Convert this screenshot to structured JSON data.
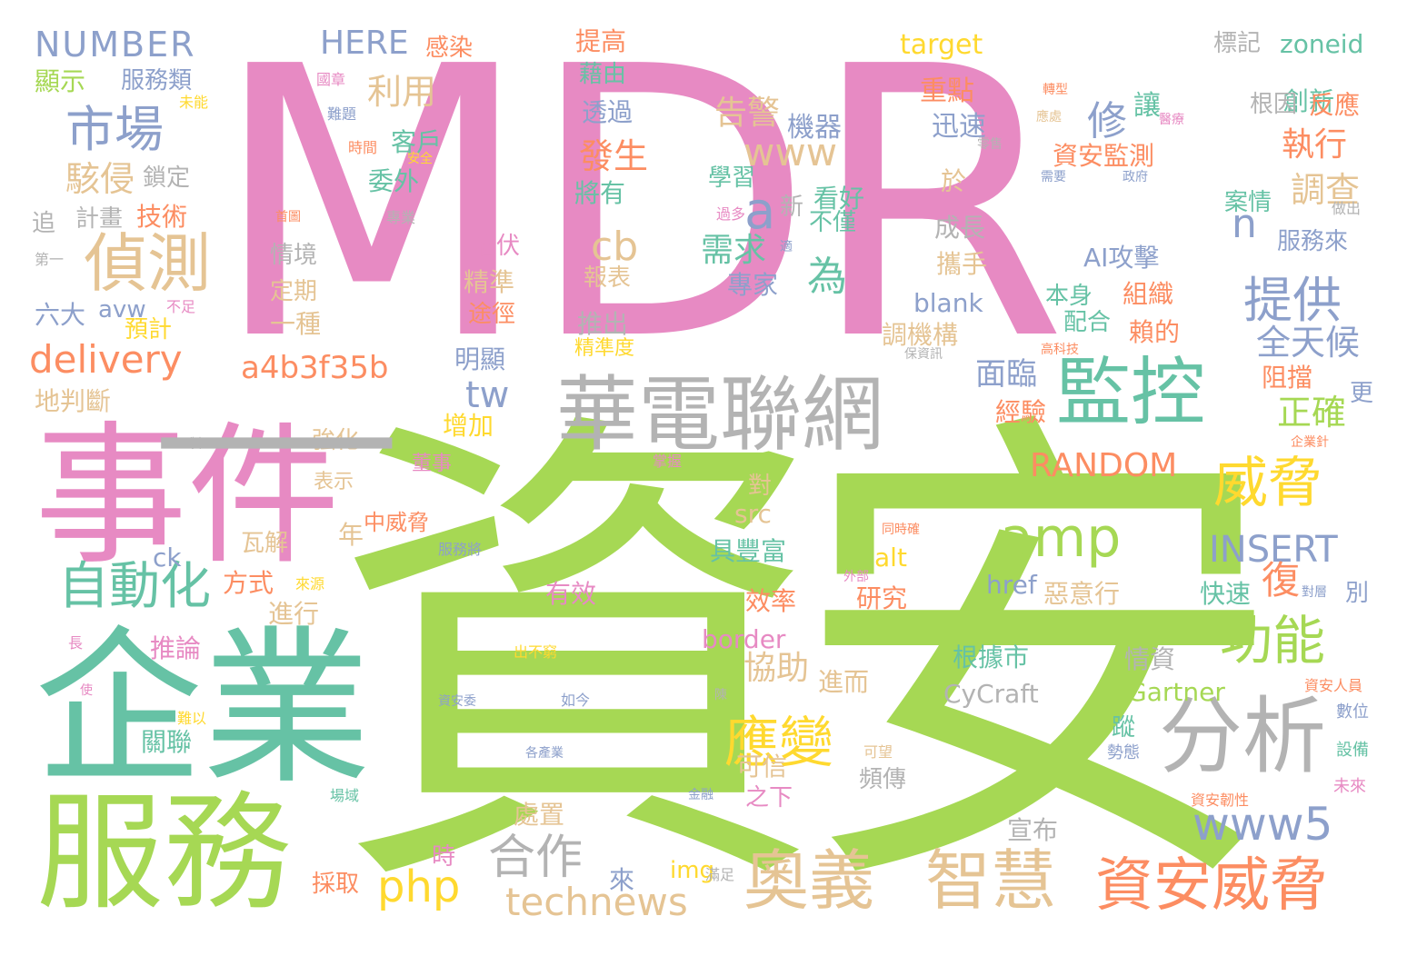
{
  "colors": {
    "pink": "#e78ac3",
    "green": "#a6d854",
    "teal": "#66c2a5",
    "gray": "#b3b3b3",
    "tan": "#e5c494",
    "blue": "#8da0cb",
    "orange": "#fc8d62",
    "yellow": "#ffd92f"
  },
  "words": [
    {
      "text": "MDR",
      "color": "pink"
    },
    {
      "text": "資安",
      "color": "green"
    },
    {
      "text": "事件",
      "color": "pink"
    },
    {
      "text": "企業",
      "color": "teal"
    },
    {
      "text": "服務",
      "color": "green"
    },
    {
      "text": "華電聯網",
      "color": "gray"
    },
    {
      "text": "監控",
      "color": "teal"
    },
    {
      "text": "分析",
      "color": "gray"
    },
    {
      "text": "奧義",
      "color": "tan"
    },
    {
      "text": "智慧",
      "color": "tan"
    },
    {
      "text": "資安威脅",
      "color": "orange"
    },
    {
      "text": "偵測",
      "color": "tan"
    },
    {
      "text": "市場",
      "color": "blue"
    },
    {
      "text": "自動化",
      "color": "teal"
    },
    {
      "text": "提供",
      "color": "blue"
    },
    {
      "text": "威脅",
      "color": "yellow"
    },
    {
      "text": "功能",
      "color": "green"
    },
    {
      "text": "應變",
      "color": "yellow"
    },
    {
      "text": "delivery",
      "color": "orange"
    },
    {
      "text": "a4b3f35b",
      "color": "orange"
    },
    {
      "text": "amp",
      "color": "green"
    },
    {
      "text": "www5",
      "color": "blue"
    },
    {
      "text": "technews",
      "color": "tan"
    },
    {
      "text": "合作",
      "color": "gray"
    },
    {
      "text": "php",
      "color": "yellow"
    },
    {
      "text": "NUMBER",
      "color": "blue"
    },
    {
      "text": "HERE",
      "color": "blue"
    },
    {
      "text": "www",
      "color": "tan"
    },
    {
      "text": "RANDOM",
      "color": "orange"
    },
    {
      "text": "INSERT",
      "color": "blue"
    },
    {
      "text": "利用",
      "color": "tan"
    },
    {
      "text": "駭侵",
      "color": "tan"
    },
    {
      "text": "告警",
      "color": "tan"
    },
    {
      "text": "發生",
      "color": "orange"
    },
    {
      "text": "執行",
      "color": "orange"
    },
    {
      "text": "調查",
      "color": "tan"
    },
    {
      "text": "全天候",
      "color": "blue"
    },
    {
      "text": "正確",
      "color": "green"
    },
    {
      "text": "面臨",
      "color": "blue"
    },
    {
      "text": "需求",
      "color": "teal"
    },
    {
      "text": "修",
      "color": "blue"
    },
    {
      "text": "復",
      "color": "orange"
    },
    {
      "text": "cb",
      "color": "tan"
    },
    {
      "text": "a",
      "color": "blue"
    },
    {
      "text": "n",
      "color": "blue"
    },
    {
      "text": "tw",
      "color": "blue"
    },
    {
      "text": "為",
      "color": "teal"
    },
    {
      "text": "協助",
      "color": "tan"
    },
    {
      "text": "提高",
      "color": "orange"
    },
    {
      "text": "藉由",
      "color": "teal"
    },
    {
      "text": "透過",
      "color": "blue"
    },
    {
      "text": "重點",
      "color": "orange"
    },
    {
      "text": "迅速",
      "color": "blue"
    },
    {
      "text": "於",
      "color": "tan"
    },
    {
      "text": "機器",
      "color": "blue"
    },
    {
      "text": "學習",
      "color": "teal"
    },
    {
      "text": "看好",
      "color": "teal"
    },
    {
      "text": "不僅",
      "color": "teal"
    },
    {
      "text": "新",
      "color": "gray"
    },
    {
      "text": "專家",
      "color": "blue"
    },
    {
      "text": "讓",
      "color": "teal"
    },
    {
      "text": "創新",
      "color": "teal"
    },
    {
      "text": "根因",
      "color": "gray"
    },
    {
      "text": "反應",
      "color": "orange"
    },
    {
      "text": "資安監測",
      "color": "orange"
    },
    {
      "text": "案情",
      "color": "teal"
    },
    {
      "text": "服務來",
      "color": "blue"
    },
    {
      "text": "標記",
      "color": "gray"
    },
    {
      "text": "zoneid",
      "color": "teal"
    },
    {
      "text": "target",
      "color": "yellow"
    },
    {
      "text": "成長",
      "color": "gray"
    },
    {
      "text": "攜手",
      "color": "tan"
    },
    {
      "text": "AI攻擊",
      "color": "blue"
    },
    {
      "text": "本身",
      "color": "teal"
    },
    {
      "text": "組織",
      "color": "orange"
    },
    {
      "text": "配合",
      "color": "teal"
    },
    {
      "text": "賴的",
      "color": "orange"
    },
    {
      "text": "阻擋",
      "color": "orange"
    },
    {
      "text": "更",
      "color": "blue"
    },
    {
      "text": "blank",
      "color": "blue"
    },
    {
      "text": "調機構",
      "color": "tan"
    },
    {
      "text": "經驗",
      "color": "orange"
    },
    {
      "text": "感染",
      "color": "orange"
    },
    {
      "text": "服務類",
      "color": "blue"
    },
    {
      "text": "顯示",
      "color": "green"
    },
    {
      "text": "鎖定",
      "color": "gray"
    },
    {
      "text": "計畫",
      "color": "gray"
    },
    {
      "text": "技術",
      "color": "orange"
    },
    {
      "text": "追",
      "color": "gray"
    },
    {
      "text": "委外",
      "color": "teal"
    },
    {
      "text": "將有",
      "color": "teal"
    },
    {
      "text": "客戶",
      "color": "teal"
    },
    {
      "text": "情境",
      "color": "gray"
    },
    {
      "text": "定期",
      "color": "tan"
    },
    {
      "text": "一種",
      "color": "tan"
    },
    {
      "text": "潛伏",
      "color": "pink"
    },
    {
      "text": "精準",
      "color": "tan"
    },
    {
      "text": "途徑",
      "color": "orange"
    },
    {
      "text": "報表",
      "color": "tan"
    },
    {
      "text": "推出",
      "color": "gray"
    },
    {
      "text": "精準度",
      "color": "yellow"
    },
    {
      "text": "明顯",
      "color": "blue"
    },
    {
      "text": "增加",
      "color": "yellow"
    },
    {
      "text": "六大",
      "color": "blue"
    },
    {
      "text": "avw",
      "color": "blue"
    },
    {
      "text": "預計",
      "color": "yellow"
    },
    {
      "text": "地判斷",
      "color": "tan"
    },
    {
      "text": "強化",
      "color": "tan"
    },
    {
      "text": "表示",
      "color": "tan"
    },
    {
      "text": "董事",
      "color": "pink"
    },
    {
      "text": "對",
      "color": "tan"
    },
    {
      "text": "src",
      "color": "tan"
    },
    {
      "text": "具豐富",
      "color": "teal"
    },
    {
      "text": "中威脅",
      "color": "orange"
    },
    {
      "text": "年",
      "color": "tan"
    },
    {
      "text": "瓦解",
      "color": "tan"
    },
    {
      "text": "ck",
      "color": "blue"
    },
    {
      "text": "方式",
      "color": "orange"
    },
    {
      "text": "進行",
      "color": "tan"
    },
    {
      "text": "推論",
      "color": "pink"
    },
    {
      "text": "關聯",
      "color": "teal"
    },
    {
      "text": "有效",
      "color": "pink"
    },
    {
      "text": "效率",
      "color": "orange"
    },
    {
      "text": "border",
      "color": "pink"
    },
    {
      "text": "進而",
      "color": "tan"
    },
    {
      "text": "可信",
      "color": "tan"
    },
    {
      "text": "處置",
      "color": "tan"
    },
    {
      "text": "之下",
      "color": "pink"
    },
    {
      "text": "頻傳",
      "color": "gray"
    },
    {
      "text": "研究",
      "color": "orange"
    },
    {
      "text": "惡意行",
      "color": "tan"
    },
    {
      "text": "根據市",
      "color": "teal"
    },
    {
      "text": "CyCraft",
      "color": "gray"
    },
    {
      "text": "Gartner",
      "color": "green"
    },
    {
      "text": "情資",
      "color": "gray"
    },
    {
      "text": "href",
      "color": "blue"
    },
    {
      "text": "alt",
      "color": "yellow"
    },
    {
      "text": "快速",
      "color": "teal"
    },
    {
      "text": "別",
      "color": "blue"
    },
    {
      "text": "宣布",
      "color": "gray"
    },
    {
      "text": "蹤",
      "color": "teal"
    },
    {
      "text": "img",
      "color": "yellow"
    },
    {
      "text": "來",
      "color": "blue"
    },
    {
      "text": "時",
      "color": "pink"
    },
    {
      "text": "採取",
      "color": "orange"
    },
    {
      "text": "勢態",
      "color": "blue"
    },
    {
      "text": "設備",
      "color": "teal"
    },
    {
      "text": "數位",
      "color": "blue"
    },
    {
      "text": "未來",
      "color": "pink"
    },
    {
      "text": "資安韌性",
      "color": "orange"
    },
    {
      "text": "資安人員",
      "color": "orange"
    },
    {
      "text": "企業針",
      "color": "orange"
    },
    {
      "text": "對層",
      "color": "blue"
    },
    {
      "text": "國章",
      "color": "pink"
    },
    {
      "text": "未能",
      "color": "yellow"
    },
    {
      "text": "難題",
      "color": "blue"
    },
    {
      "text": "時間",
      "color": "orange"
    },
    {
      "text": "安全",
      "color": "yellow"
    },
    {
      "text": "首圖",
      "color": "orange"
    },
    {
      "text": "專業",
      "color": "gray"
    },
    {
      "text": "第一",
      "color": "gray"
    },
    {
      "text": "不足",
      "color": "pink"
    },
    {
      "text": "過多",
      "color": "pink"
    },
    {
      "text": "適",
      "color": "blue"
    },
    {
      "text": "轉型",
      "color": "orange"
    },
    {
      "text": "應處",
      "color": "tan"
    },
    {
      "text": "醫療",
      "color": "pink"
    },
    {
      "text": "零售",
      "color": "gray"
    },
    {
      "text": "需要",
      "color": "blue"
    },
    {
      "text": "政府",
      "color": "blue"
    },
    {
      "text": "做出",
      "color": "gray"
    },
    {
      "text": "高科技",
      "color": "orange"
    },
    {
      "text": "保資訊",
      "color": "gray"
    },
    {
      "text": "製",
      "color": "gray"
    },
    {
      "text": "掌握",
      "color": "pink"
    },
    {
      "text": "同時確",
      "color": "orange"
    },
    {
      "text": "外部",
      "color": "pink"
    },
    {
      "text": "服務將",
      "color": "blue"
    },
    {
      "text": "來源",
      "color": "yellow"
    },
    {
      "text": "出不窮",
      "color": "yellow"
    },
    {
      "text": "長",
      "color": "pink"
    },
    {
      "text": "使",
      "color": "pink"
    },
    {
      "text": "難以",
      "color": "yellow"
    },
    {
      "text": "資安委",
      "color": "blue"
    },
    {
      "text": "如今",
      "color": "blue"
    },
    {
      "text": "陳",
      "color": "gray"
    },
    {
      "text": "可望",
      "color": "tan"
    },
    {
      "text": "各產業",
      "color": "blue"
    },
    {
      "text": "場域",
      "color": "teal"
    },
    {
      "text": "金融",
      "color": "blue"
    },
    {
      "text": "滿足",
      "color": "gray"
    },
    {
      "text": "一",
      "color": "gray"
    }
  ]
}
